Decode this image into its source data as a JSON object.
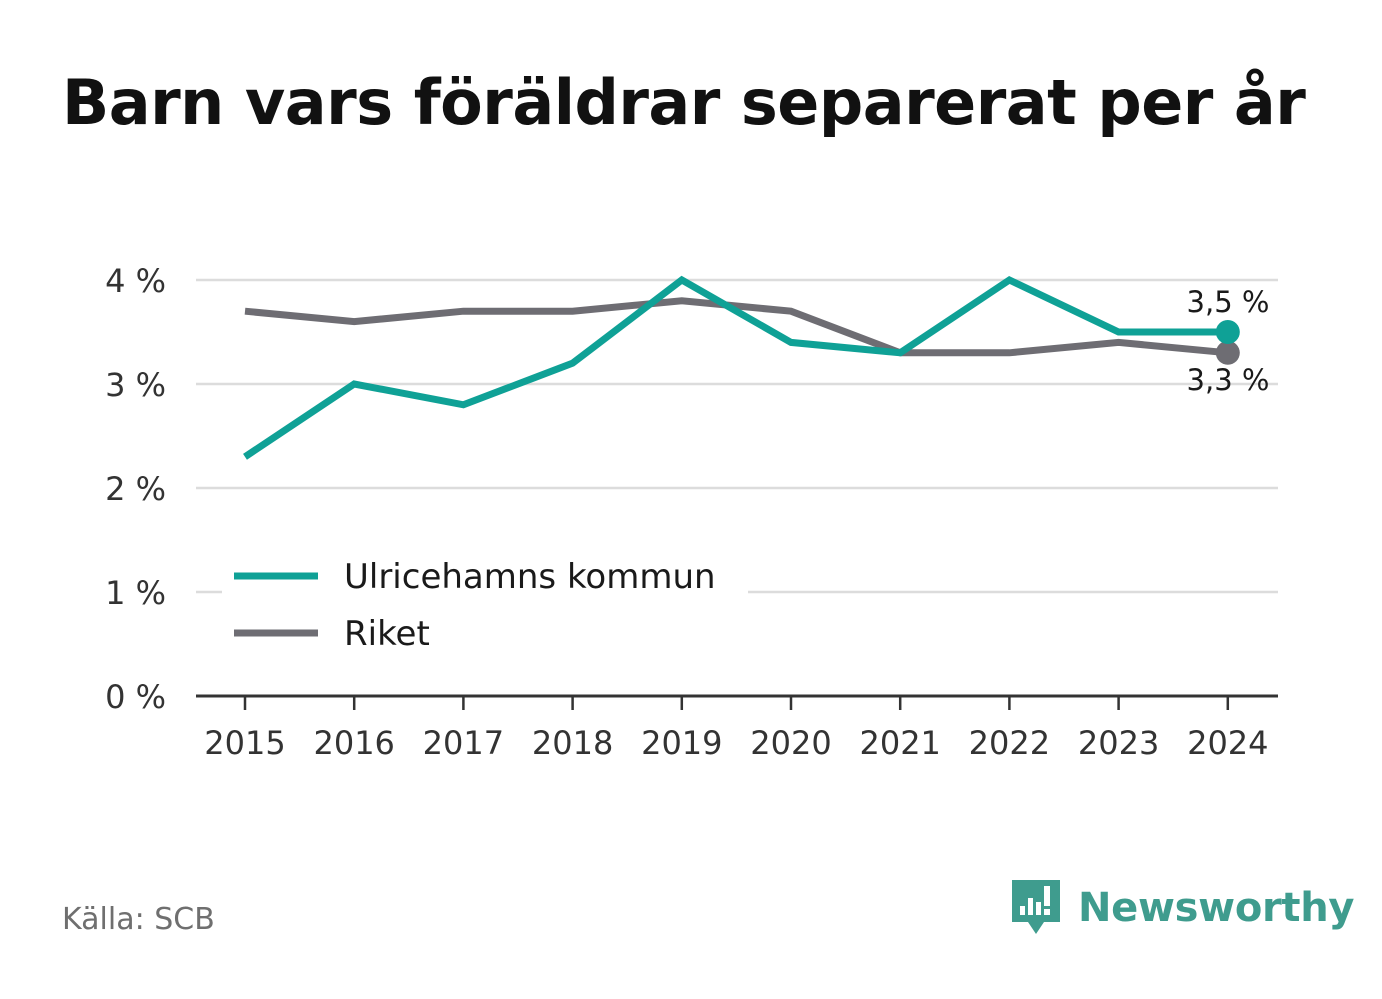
{
  "title": "Barn vars föräldrar separerat per år",
  "source": "Källa: SCB",
  "brand": {
    "name": "Newsworthy",
    "icon": "newsworthy-logo-icon",
    "color": "#3f9c8e"
  },
  "chart_data": {
    "type": "line",
    "x": [
      "2015",
      "2016",
      "2017",
      "2018",
      "2019",
      "2020",
      "2021",
      "2022",
      "2023",
      "2024"
    ],
    "series": [
      {
        "name": "Ulricehamns kommun",
        "color": "#0fa196",
        "values": [
          2.3,
          3.0,
          2.8,
          3.2,
          4.0,
          3.4,
          3.3,
          4.0,
          3.5,
          3.5
        ],
        "end_label": "3,5 %"
      },
      {
        "name": "Riket",
        "color": "#6e6d73",
        "values": [
          3.7,
          3.6,
          3.7,
          3.7,
          3.8,
          3.7,
          3.3,
          3.3,
          3.4,
          3.3
        ],
        "end_label": "3,3 %"
      }
    ],
    "y_ticks": [
      0,
      1,
      2,
      3,
      4
    ],
    "y_tick_labels": [
      "0 %",
      "1 %",
      "2 %",
      "3 %",
      "4 %"
    ],
    "ylim": [
      0,
      4
    ],
    "grid": true,
    "legend_position": "lower-left inside plot"
  }
}
